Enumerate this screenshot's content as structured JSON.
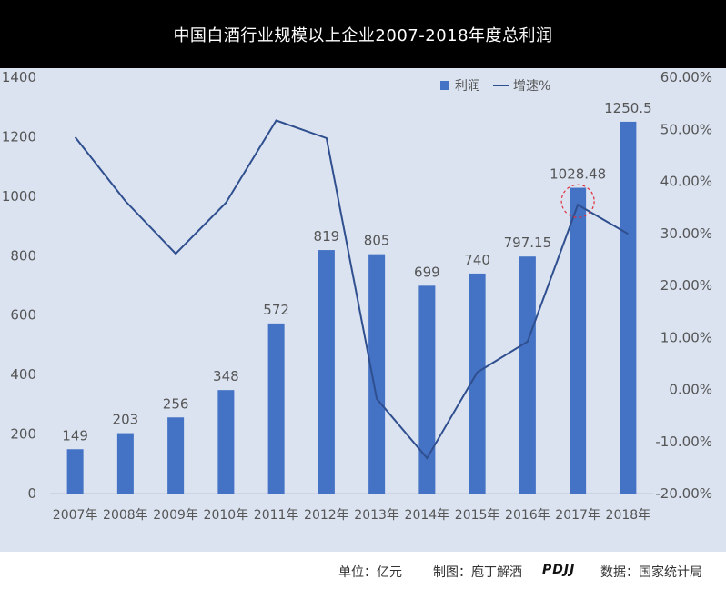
{
  "header": {
    "title": "中国白酒行业规模以上企业2007-2018年度总利润"
  },
  "chart_data": {
    "type": "bar",
    "categories": [
      "2007年",
      "2008年",
      "2009年",
      "2010年",
      "2011年",
      "2012年",
      "2013年",
      "2014年",
      "2015年",
      "2016年",
      "2017年",
      "2018年"
    ],
    "series": [
      {
        "name": "利润",
        "type": "bar",
        "axis": "left",
        "values": [
          149,
          203,
          256,
          348,
          572,
          819,
          805,
          699,
          740,
          797.15,
          1028.48,
          1250.5
        ],
        "labels": [
          "149",
          "203",
          "256",
          "348",
          "572",
          "819",
          "805",
          "699",
          "740",
          "797.15",
          "1028.48",
          "1250.5"
        ],
        "color": "#4472c4"
      },
      {
        "name": "增速%",
        "type": "line",
        "axis": "right",
        "values": [
          48.5,
          36.2,
          26.1,
          35.9,
          51.7,
          48.3,
          -1.8,
          -13.2,
          3.3,
          9.2,
          35.5,
          29.9
        ],
        "color": "#2f4f8f"
      }
    ],
    "y_left": {
      "min": 0,
      "max": 1400,
      "ticks": [
        "0",
        "200",
        "400",
        "600",
        "800",
        "1000",
        "1200",
        "1400"
      ]
    },
    "y_right": {
      "min": -20,
      "max": 60,
      "ticks": [
        "-20.00%",
        "-10.00%",
        "0.00%",
        "10.00%",
        "20.00%",
        "30.00%",
        "40.00%",
        "50.00%",
        "60.00%"
      ]
    },
    "legend": {
      "position": "top-right",
      "items": [
        "利润",
        "增速%"
      ]
    },
    "highlight": {
      "category": "2017年",
      "series": "增速%",
      "style": "dashed-red-circle"
    },
    "grid": false
  },
  "footer": {
    "unit": "单位：亿元",
    "made_by": "制图：庖丁解酒",
    "logo": "PDJJ",
    "source": "数据：国家统计局"
  }
}
